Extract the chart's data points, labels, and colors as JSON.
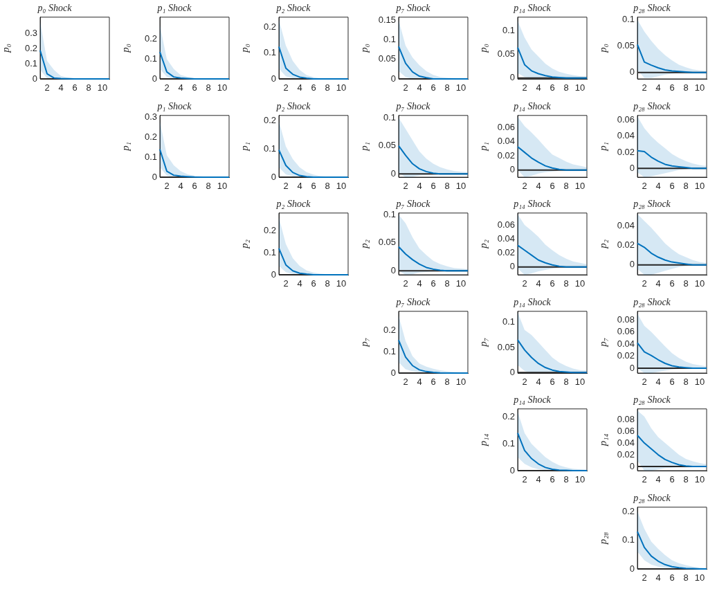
{
  "chart_data": [
    {
      "type": "line",
      "title": "p₀ Shock",
      "ylabel": "p₀",
      "x": [
        1,
        2,
        3,
        4,
        5,
        6,
        7,
        8,
        9,
        10,
        11
      ],
      "xlim": [
        1,
        11
      ],
      "xticks": [
        2,
        4,
        6,
        8,
        10
      ],
      "ylim": [
        0,
        0.41
      ],
      "yticks": [
        0,
        0.1,
        0.2,
        0.3
      ],
      "ref_lines": [
        {
          "axis": "y",
          "value": 0,
          "color": "#262626"
        }
      ],
      "series": [
        {
          "color": "#0072bd",
          "values": [
            0.19,
            0.034,
            0.006,
            0.002,
            0.001,
            0,
            0,
            0,
            0,
            0,
            0
          ],
          "upper": [
            0.38,
            0.12,
            0.06,
            0.02,
            0.008,
            0.003,
            0.001,
            0,
            0,
            0,
            0
          ],
          "lower": [
            0.06,
            0.005,
            0,
            0,
            0,
            0,
            0,
            0,
            0,
            0,
            0
          ]
        }
      ]
    },
    {
      "type": "line",
      "title": "p₁ Shock",
      "ylabel": "p₀",
      "x": [
        1,
        2,
        3,
        4,
        5,
        6,
        7,
        8,
        9,
        10,
        11
      ],
      "xlim": [
        1,
        11
      ],
      "xticks": [
        2,
        4,
        6,
        8,
        10
      ],
      "ylim": [
        0,
        0.31
      ],
      "yticks": [
        0,
        0.1,
        0.2
      ],
      "ref_lines": [
        {
          "axis": "y",
          "value": 0,
          "color": "#262626"
        }
      ],
      "series": [
        {
          "color": "#0072bd",
          "values": [
            0.135,
            0.035,
            0.01,
            0.004,
            0.002,
            0,
            0,
            0,
            0,
            0,
            0
          ],
          "upper": [
            0.27,
            0.1,
            0.05,
            0.02,
            0.01,
            0.004,
            0.002,
            0,
            0,
            0,
            0
          ],
          "lower": [
            0.05,
            0.01,
            0,
            0,
            0,
            0,
            0,
            0,
            0,
            0,
            0
          ]
        }
      ]
    },
    {
      "type": "line",
      "title": "p₂ Shock",
      "ylabel": "p₀",
      "x": [
        1,
        2,
        3,
        4,
        5,
        6,
        7,
        8,
        9,
        10,
        11
      ],
      "xlim": [
        1,
        11
      ],
      "xticks": [
        2,
        4,
        6,
        8,
        10
      ],
      "ylim": [
        0,
        0.24
      ],
      "yticks": [
        0,
        0.1,
        0.2
      ],
      "ref_lines": [
        {
          "axis": "y",
          "value": 0,
          "color": "#262626"
        }
      ],
      "series": [
        {
          "color": "#0072bd",
          "values": [
            0.125,
            0.042,
            0.018,
            0.007,
            0.003,
            0,
            0,
            0,
            0,
            0,
            0
          ],
          "upper": [
            0.23,
            0.13,
            0.07,
            0.035,
            0.015,
            0.007,
            0.003,
            0,
            0,
            0,
            0
          ],
          "lower": [
            0.04,
            0.01,
            0.003,
            0,
            0,
            0,
            0,
            0,
            0,
            0,
            0
          ]
        }
      ]
    },
    {
      "type": "line",
      "title": "p₇ Shock",
      "ylabel": "p₀",
      "x": [
        1,
        2,
        3,
        4,
        5,
        6,
        7,
        8,
        9,
        10,
        11
      ],
      "xlim": [
        1,
        11
      ],
      "xticks": [
        2,
        4,
        6,
        8,
        10
      ],
      "ylim": [
        0,
        0.158
      ],
      "yticks": [
        0,
        0.05,
        0.1,
        0.15
      ],
      "ref_lines": [
        {
          "axis": "y",
          "value": 0,
          "color": "#262626"
        }
      ],
      "series": [
        {
          "color": "#0072bd",
          "values": [
            0.083,
            0.04,
            0.018,
            0.007,
            0.003,
            0,
            0,
            0,
            0,
            0,
            0
          ],
          "upper": [
            0.15,
            0.085,
            0.055,
            0.035,
            0.02,
            0.01,
            0.005,
            0.003,
            0.002,
            0.001,
            0.001
          ],
          "lower": [
            0.02,
            0.005,
            0,
            0,
            0,
            0,
            0,
            0,
            0,
            0,
            0
          ]
        }
      ]
    },
    {
      "type": "line",
      "title": "p₁₄ Shock",
      "ylabel": "p₀",
      "x": [
        1,
        2,
        3,
        4,
        5,
        6,
        7,
        8,
        9,
        10,
        11
      ],
      "xlim": [
        1,
        11
      ],
      "xticks": [
        2,
        4,
        6,
        8,
        10
      ],
      "ylim": [
        -0.002,
        0.128
      ],
      "yticks": [
        0,
        0.05,
        0.1
      ],
      "ref_lines": [
        {
          "axis": "y",
          "value": 0,
          "color": "#262626"
        }
      ],
      "series": [
        {
          "color": "#0072bd",
          "values": [
            0.064,
            0.028,
            0.015,
            0.009,
            0.005,
            0.002,
            0.001,
            0,
            0,
            0,
            0
          ],
          "upper": [
            0.12,
            0.085,
            0.06,
            0.045,
            0.03,
            0.02,
            0.013,
            0.009,
            0.006,
            0.004,
            0.003
          ],
          "lower": [
            0.01,
            0.002,
            0,
            0,
            0,
            0,
            0,
            0,
            0,
            0,
            0
          ]
        }
      ]
    },
    {
      "type": "line",
      "title": "p₂₈ Shock",
      "ylabel": "p₀",
      "x": [
        1,
        2,
        3,
        4,
        5,
        6,
        7,
        8,
        9,
        10,
        11
      ],
      "xlim": [
        1,
        11
      ],
      "xticks": [
        2,
        4,
        6,
        8,
        10
      ],
      "ylim": [
        -0.012,
        0.105
      ],
      "yticks": [
        0,
        0.05,
        0.1
      ],
      "ref_lines": [
        {
          "axis": "y",
          "value": 0,
          "color": "#262626"
        }
      ],
      "series": [
        {
          "color": "#0072bd",
          "values": [
            0.053,
            0.02,
            0.014,
            0.009,
            0.005,
            0.003,
            0.002,
            0.001,
            0,
            0,
            0
          ],
          "upper": [
            0.1,
            0.078,
            0.06,
            0.045,
            0.033,
            0.023,
            0.015,
            0.01,
            0.006,
            0.004,
            0.003
          ],
          "lower": [
            0.005,
            -0.01,
            -0.01,
            -0.007,
            -0.004,
            -0.002,
            -0.001,
            0,
            0,
            0,
            0
          ]
        }
      ]
    },
    {
      "type": "line",
      "title": "p₁ Shock",
      "ylabel": "p₁",
      "x": [
        1,
        2,
        3,
        4,
        5,
        6,
        7,
        8,
        9,
        10,
        11
      ],
      "xlim": [
        1,
        11
      ],
      "xticks": [
        2,
        4,
        6,
        8,
        10
      ],
      "ylim": [
        0,
        0.31
      ],
      "yticks": [
        0,
        0.1,
        0.2,
        0.3
      ],
      "ref_lines": [
        {
          "axis": "y",
          "value": 0,
          "color": "#262626"
        }
      ],
      "series": [
        {
          "color": "#0072bd",
          "values": [
            0.14,
            0.03,
            0.01,
            0.005,
            0.003,
            0.001,
            0,
            0,
            0,
            0,
            0
          ],
          "upper": [
            0.28,
            0.11,
            0.06,
            0.03,
            0.015,
            0.007,
            0.004,
            0.002,
            0,
            0,
            0
          ],
          "lower": [
            0.05,
            0.008,
            0,
            0,
            0,
            0,
            0,
            0,
            0,
            0,
            0
          ]
        }
      ]
    },
    {
      "type": "line",
      "title": "p₂ Shock",
      "ylabel": "p₁",
      "x": [
        1,
        2,
        3,
        4,
        5,
        6,
        7,
        8,
        9,
        10,
        11
      ],
      "xlim": [
        1,
        11
      ],
      "xticks": [
        2,
        4,
        6,
        8,
        10
      ],
      "ylim": [
        0,
        0.22
      ],
      "yticks": [
        0,
        0.1,
        0.2
      ],
      "ref_lines": [
        {
          "axis": "y",
          "value": 0,
          "color": "#262626"
        }
      ],
      "series": [
        {
          "color": "#0072bd",
          "values": [
            0.097,
            0.042,
            0.017,
            0.006,
            0.002,
            0,
            0,
            0,
            0,
            0,
            0
          ],
          "upper": [
            0.2,
            0.11,
            0.065,
            0.035,
            0.018,
            0.009,
            0.004,
            0.002,
            0,
            0,
            0
          ],
          "lower": [
            0.035,
            0.01,
            0.003,
            0,
            0,
            0,
            0,
            0,
            0,
            0,
            0
          ]
        }
      ]
    },
    {
      "type": "line",
      "title": "p₇ Shock",
      "ylabel": "p₁",
      "x": [
        1,
        2,
        3,
        4,
        5,
        6,
        7,
        8,
        9,
        10,
        11
      ],
      "xlim": [
        1,
        11
      ],
      "xticks": [
        2,
        4,
        6,
        8,
        10
      ],
      "ylim": [
        -0.006,
        0.104
      ],
      "yticks": [
        0,
        0.05,
        0.1
      ],
      "ref_lines": [
        {
          "axis": "y",
          "value": 0,
          "color": "#262626"
        }
      ],
      "series": [
        {
          "color": "#0072bd",
          "values": [
            0.05,
            0.033,
            0.018,
            0.009,
            0.004,
            0.001,
            0,
            0,
            0,
            0,
            0
          ],
          "upper": [
            0.1,
            0.08,
            0.06,
            0.04,
            0.027,
            0.018,
            0.012,
            0.008,
            0.005,
            0.004,
            0.003
          ],
          "lower": [
            0.002,
            -0.006,
            -0.005,
            -0.003,
            -0.002,
            -0.001,
            0,
            0,
            0,
            0,
            0
          ]
        }
      ]
    },
    {
      "type": "line",
      "title": "p₁₄ Shock",
      "ylabel": "p₁",
      "x": [
        1,
        2,
        3,
        4,
        5,
        6,
        7,
        8,
        9,
        10,
        11
      ],
      "xlim": [
        1,
        11
      ],
      "xticks": [
        2,
        4,
        6,
        8,
        10
      ],
      "ylim": [
        -0.01,
        0.077
      ],
      "yticks": [
        0,
        0.02,
        0.04,
        0.06
      ],
      "ref_lines": [
        {
          "axis": "y",
          "value": 0,
          "color": "#262626"
        }
      ],
      "series": [
        {
          "color": "#0072bd",
          "values": [
            0.033,
            0.025,
            0.017,
            0.011,
            0.006,
            0.003,
            0.001,
            0,
            0,
            0,
            0
          ],
          "upper": [
            0.075,
            0.062,
            0.053,
            0.043,
            0.032,
            0.022,
            0.017,
            0.012,
            0.008,
            0.006,
            0.004
          ],
          "lower": [
            0,
            -0.01,
            -0.008,
            -0.005,
            -0.003,
            -0.002,
            -0.001,
            0,
            0,
            0,
            0
          ]
        }
      ]
    },
    {
      "type": "line",
      "title": "p₂₈ Shock",
      "ylabel": "p₁",
      "x": [
        1,
        2,
        3,
        4,
        5,
        6,
        7,
        8,
        9,
        10,
        11
      ],
      "xlim": [
        1,
        11
      ],
      "xticks": [
        2,
        4,
        6,
        8,
        10
      ],
      "ylim": [
        -0.011,
        0.066
      ],
      "yticks": [
        0,
        0.02,
        0.04,
        0.06
      ],
      "ref_lines": [
        {
          "axis": "y",
          "value": 0,
          "color": "#262626"
        }
      ],
      "series": [
        {
          "color": "#0072bd",
          "values": [
            0.022,
            0.021,
            0.014,
            0.009,
            0.005,
            0.003,
            0.002,
            0.001,
            0,
            0,
            0
          ],
          "upper": [
            0.065,
            0.05,
            0.04,
            0.032,
            0.025,
            0.018,
            0.013,
            0.009,
            0.006,
            0.004,
            0.003
          ],
          "lower": [
            -0.005,
            -0.011,
            -0.01,
            -0.008,
            -0.006,
            -0.004,
            -0.002,
            -0.001,
            0,
            0,
            0
          ]
        }
      ]
    },
    {
      "type": "line",
      "title": "p₂ Shock",
      "ylabel": "p₂",
      "x": [
        1,
        2,
        3,
        4,
        5,
        6,
        7,
        8,
        9,
        10,
        11
      ],
      "xlim": [
        1,
        11
      ],
      "xticks": [
        2,
        4,
        6,
        8,
        10
      ],
      "ylim": [
        0,
        0.28
      ],
      "yticks": [
        0,
        0.1,
        0.2
      ],
      "ref_lines": [
        {
          "axis": "y",
          "value": 0,
          "color": "#262626"
        }
      ],
      "series": [
        {
          "color": "#0072bd",
          "values": [
            0.12,
            0.045,
            0.018,
            0.007,
            0.003,
            0,
            0,
            0,
            0,
            0,
            0
          ],
          "upper": [
            0.26,
            0.14,
            0.075,
            0.04,
            0.02,
            0.01,
            0.005,
            0.002,
            0,
            0,
            0
          ],
          "lower": [
            0.04,
            0.012,
            0.004,
            0,
            0,
            0,
            0,
            0,
            0,
            0,
            0
          ]
        }
      ]
    },
    {
      "type": "line",
      "title": "p₇ Shock",
      "ylabel": "p₂",
      "x": [
        1,
        2,
        3,
        4,
        5,
        6,
        7,
        8,
        9,
        10,
        11
      ],
      "xlim": [
        1,
        11
      ],
      "xticks": [
        2,
        4,
        6,
        8,
        10
      ],
      "ylim": [
        -0.007,
        0.103
      ],
      "yticks": [
        0,
        0.05,
        0.1
      ],
      "ref_lines": [
        {
          "axis": "y",
          "value": 0,
          "color": "#262626"
        }
      ],
      "series": [
        {
          "color": "#0072bd",
          "values": [
            0.043,
            0.03,
            0.02,
            0.012,
            0.006,
            0.003,
            0.001,
            0,
            0,
            0,
            0
          ],
          "upper": [
            0.1,
            0.085,
            0.06,
            0.04,
            0.028,
            0.018,
            0.012,
            0.008,
            0.005,
            0.004,
            0.003
          ],
          "lower": [
            0,
            -0.007,
            -0.006,
            -0.003,
            -0.002,
            -0.001,
            0,
            0,
            0,
            0,
            0
          ]
        }
      ]
    },
    {
      "type": "line",
      "title": "p₁₄ Shock",
      "ylabel": "p₂",
      "x": [
        1,
        2,
        3,
        4,
        5,
        6,
        7,
        8,
        9,
        10,
        11
      ],
      "xlim": [
        1,
        11
      ],
      "xticks": [
        2,
        4,
        6,
        8,
        10
      ],
      "ylim": [
        -0.011,
        0.077
      ],
      "yticks": [
        0,
        0.02,
        0.04,
        0.06
      ],
      "ref_lines": [
        {
          "axis": "y",
          "value": 0,
          "color": "#262626"
        }
      ],
      "series": [
        {
          "color": "#0072bd",
          "values": [
            0.031,
            0.024,
            0.017,
            0.01,
            0.006,
            0.003,
            0.001,
            0,
            0,
            0,
            0
          ],
          "upper": [
            0.075,
            0.06,
            0.052,
            0.043,
            0.032,
            0.024,
            0.017,
            0.012,
            0.008,
            0.006,
            0.004
          ],
          "lower": [
            -0.002,
            -0.011,
            -0.009,
            -0.006,
            -0.004,
            -0.002,
            -0.001,
            0,
            0,
            0,
            0
          ]
        }
      ]
    },
    {
      "type": "line",
      "title": "p₂₈ Shock",
      "ylabel": "p₂",
      "x": [
        1,
        2,
        3,
        4,
        5,
        6,
        7,
        8,
        9,
        10,
        11
      ],
      "xlim": [
        1,
        11
      ],
      "xticks": [
        2,
        4,
        6,
        8,
        10
      ],
      "ylim": [
        -0.01,
        0.053
      ],
      "yticks": [
        0,
        0.02,
        0.04
      ],
      "ref_lines": [
        {
          "axis": "y",
          "value": 0,
          "color": "#262626"
        }
      ],
      "series": [
        {
          "color": "#0072bd",
          "values": [
            0.022,
            0.018,
            0.012,
            0.008,
            0.005,
            0.003,
            0.002,
            0.001,
            0,
            0,
            0
          ],
          "upper": [
            0.052,
            0.045,
            0.038,
            0.03,
            0.022,
            0.016,
            0.011,
            0.008,
            0.005,
            0.003,
            0.002
          ],
          "lower": [
            -0.004,
            -0.01,
            -0.01,
            -0.008,
            -0.006,
            -0.004,
            -0.002,
            -0.001,
            0,
            0,
            0
          ]
        }
      ]
    },
    {
      "type": "line",
      "title": "p₇ Shock",
      "ylabel": "p₇",
      "x": [
        1,
        2,
        3,
        4,
        5,
        6,
        7,
        8,
        9,
        10,
        11
      ],
      "xlim": [
        1,
        11
      ],
      "xticks": [
        2,
        4,
        6,
        8,
        10
      ],
      "ylim": [
        0,
        0.29
      ],
      "yticks": [
        0,
        0.1,
        0.2
      ],
      "ref_lines": [
        {
          "axis": "y",
          "value": 0,
          "color": "#262626"
        }
      ],
      "series": [
        {
          "color": "#0072bd",
          "values": [
            0.155,
            0.075,
            0.035,
            0.015,
            0.007,
            0.003,
            0.001,
            0,
            0,
            0,
            0
          ],
          "upper": [
            0.27,
            0.15,
            0.08,
            0.045,
            0.03,
            0.02,
            0.013,
            0.008,
            0.005,
            0.003,
            0.002
          ],
          "lower": [
            0.05,
            0.018,
            0.008,
            0.003,
            0.001,
            0,
            0,
            0,
            0,
            0,
            0
          ]
        }
      ]
    },
    {
      "type": "line",
      "title": "p₁₄ Shock",
      "ylabel": "p₇",
      "x": [
        1,
        2,
        3,
        4,
        5,
        6,
        7,
        8,
        9,
        10,
        11
      ],
      "xlim": [
        1,
        11
      ],
      "xticks": [
        2,
        4,
        6,
        8,
        10
      ],
      "ylim": [
        -0.001,
        0.122
      ],
      "yticks": [
        0,
        0.05,
        0.1
      ],
      "ref_lines": [
        {
          "axis": "y",
          "value": 0,
          "color": "#262626"
        }
      ],
      "series": [
        {
          "color": "#0072bd",
          "values": [
            0.065,
            0.045,
            0.03,
            0.018,
            0.01,
            0.005,
            0.002,
            0.001,
            0,
            0,
            0
          ],
          "upper": [
            0.12,
            0.085,
            0.075,
            0.06,
            0.045,
            0.03,
            0.02,
            0.013,
            0.008,
            0.005,
            0.004
          ],
          "lower": [
            0.015,
            0.003,
            0,
            0,
            0,
            0,
            0,
            0,
            0,
            0,
            0
          ]
        }
      ]
    },
    {
      "type": "line",
      "title": "p₂₈ Shock",
      "ylabel": "p₇",
      "x": [
        1,
        2,
        3,
        4,
        5,
        6,
        7,
        8,
        9,
        10,
        11
      ],
      "xlim": [
        1,
        11
      ],
      "xticks": [
        2,
        4,
        6,
        8,
        10
      ],
      "ylim": [
        -0.008,
        0.094
      ],
      "yticks": [
        0,
        0.02,
        0.04,
        0.06,
        0.08
      ],
      "ref_lines": [
        {
          "axis": "y",
          "value": 0,
          "color": "#262626"
        }
      ],
      "series": [
        {
          "color": "#0072bd",
          "values": [
            0.042,
            0.027,
            0.021,
            0.014,
            0.008,
            0.004,
            0.002,
            0.001,
            0,
            0,
            0
          ],
          "upper": [
            0.09,
            0.07,
            0.06,
            0.048,
            0.036,
            0.025,
            0.017,
            0.011,
            0.007,
            0.005,
            0.003
          ],
          "lower": [
            0,
            -0.008,
            -0.008,
            -0.006,
            -0.004,
            -0.002,
            -0.001,
            0,
            0,
            0,
            0
          ]
        }
      ]
    },
    {
      "type": "line",
      "title": "p₁₄ Shock",
      "ylabel": "p₁₄",
      "x": [
        1,
        2,
        3,
        4,
        5,
        6,
        7,
        8,
        9,
        10,
        11
      ],
      "xlim": [
        1,
        11
      ],
      "xticks": [
        2,
        4,
        6,
        8,
        10
      ],
      "ylim": [
        0,
        0.23
      ],
      "yticks": [
        0,
        0.1,
        0.2
      ],
      "ref_lines": [
        {
          "axis": "y",
          "value": 0,
          "color": "#262626"
        }
      ],
      "series": [
        {
          "color": "#0072bd",
          "values": [
            0.14,
            0.075,
            0.045,
            0.025,
            0.012,
            0.005,
            0.002,
            0.001,
            0,
            0,
            0
          ],
          "upper": [
            0.22,
            0.14,
            0.1,
            0.075,
            0.05,
            0.033,
            0.02,
            0.012,
            0.007,
            0.005,
            0.003
          ],
          "lower": [
            0.05,
            0.025,
            0.012,
            0.005,
            0.002,
            0,
            0,
            0,
            0,
            0,
            0
          ]
        }
      ]
    },
    {
      "type": "line",
      "title": "p₂₈ Shock",
      "ylabel": "p₁₄",
      "x": [
        1,
        2,
        3,
        4,
        5,
        6,
        7,
        8,
        9,
        10,
        11
      ],
      "xlim": [
        1,
        11
      ],
      "xticks": [
        2,
        4,
        6,
        8,
        10
      ],
      "ylim": [
        -0.007,
        0.098
      ],
      "yticks": [
        0,
        0.02,
        0.04,
        0.06,
        0.08
      ],
      "ref_lines": [
        {
          "axis": "y",
          "value": 0,
          "color": "#262626"
        }
      ],
      "series": [
        {
          "color": "#0072bd",
          "values": [
            0.053,
            0.04,
            0.03,
            0.02,
            0.012,
            0.007,
            0.003,
            0.001,
            0,
            0,
            0
          ],
          "upper": [
            0.095,
            0.085,
            0.065,
            0.05,
            0.04,
            0.03,
            0.02,
            0.013,
            0.009,
            0.006,
            0.004
          ],
          "lower": [
            0.01,
            -0.007,
            -0.007,
            -0.005,
            -0.003,
            -0.002,
            -0.001,
            0,
            0,
            0,
            0
          ]
        }
      ]
    },
    {
      "type": "line",
      "title": "p₂₈ Shock",
      "ylabel": "p₂₈",
      "x": [
        1,
        2,
        3,
        4,
        5,
        6,
        7,
        8,
        9,
        10,
        11
      ],
      "xlim": [
        1,
        11
      ],
      "xticks": [
        2,
        4,
        6,
        8,
        10
      ],
      "ylim": [
        0,
        0.215
      ],
      "yticks": [
        0,
        0.1,
        0.2
      ],
      "ref_lines": [
        {
          "axis": "y",
          "value": 0,
          "color": "#262626"
        }
      ],
      "series": [
        {
          "color": "#0072bd",
          "values": [
            0.13,
            0.075,
            0.045,
            0.027,
            0.015,
            0.008,
            0.004,
            0.002,
            0.001,
            0,
            0
          ],
          "upper": [
            0.2,
            0.14,
            0.095,
            0.07,
            0.048,
            0.03,
            0.02,
            0.013,
            0.008,
            0.005,
            0.003
          ],
          "lower": [
            0.06,
            0.03,
            0.015,
            0.008,
            0.004,
            0.002,
            0.001,
            0,
            0,
            0,
            0
          ]
        }
      ]
    }
  ]
}
